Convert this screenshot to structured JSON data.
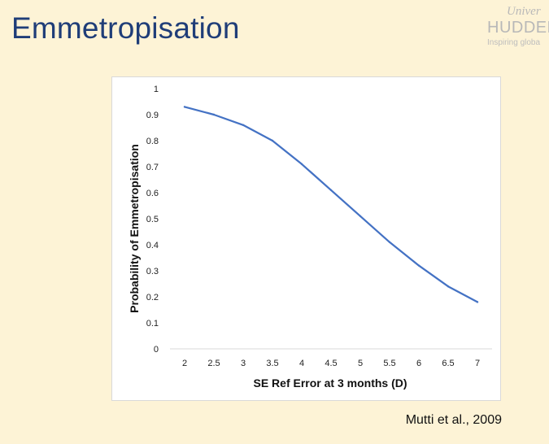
{
  "slide": {
    "title": "Emmetropisation",
    "citation": "Mutti et al., 2009"
  },
  "logo": {
    "line1": "Univer",
    "line2": "HUDDER",
    "line3": "Inspiring globa"
  },
  "colors": {
    "background": "#fdf3d6",
    "title": "#1f3d78",
    "series": "#4472c4"
  },
  "chart_data": {
    "type": "line",
    "title": "",
    "xlabel": "SE Ref Error at 3 months (D)",
    "ylabel": "Probability of Emmetropisation",
    "x": [
      2,
      2.5,
      3,
      3.5,
      4,
      4.5,
      5,
      5.5,
      6,
      6.5,
      7
    ],
    "x_tick_labels": [
      "2",
      "2.5",
      "3",
      "3.5",
      "4",
      "4.5",
      "5",
      "5.5",
      "6",
      "6.5",
      "7"
    ],
    "y_ticks": [
      0,
      0.1,
      0.2,
      0.3,
      0.4,
      0.5,
      0.6,
      0.7,
      0.8,
      0.9,
      1
    ],
    "y_tick_labels": [
      "0",
      "0.1",
      "0.2",
      "0.3",
      "0.4",
      "0.5",
      "0.6",
      "0.7",
      "0.8",
      "0.9",
      "1"
    ],
    "ylim": [
      0,
      1
    ],
    "grid": false,
    "legend": "none",
    "series": [
      {
        "name": "Probability of Emmetropisation",
        "values": [
          0.93,
          0.9,
          0.86,
          0.8,
          0.71,
          0.61,
          0.51,
          0.41,
          0.32,
          0.24,
          0.18
        ]
      }
    ]
  }
}
